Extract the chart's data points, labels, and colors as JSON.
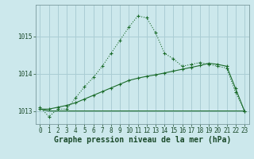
{
  "xlabel": "Graphe pression niveau de la mer (hPa)",
  "background_color": "#cce8ec",
  "grid_color": "#aacdd4",
  "line_color": "#1a6b2a",
  "hours": [
    0,
    1,
    2,
    3,
    4,
    5,
    6,
    7,
    8,
    9,
    10,
    11,
    12,
    13,
    14,
    15,
    16,
    17,
    18,
    19,
    20,
    21,
    22,
    23
  ],
  "line1": [
    1013.1,
    1012.85,
    1013.05,
    1013.05,
    1013.35,
    1013.65,
    1013.9,
    1014.2,
    1014.55,
    1014.9,
    1015.25,
    1015.55,
    1015.5,
    1015.1,
    1014.55,
    1014.4,
    1014.2,
    1014.25,
    1014.3,
    1014.25,
    1014.2,
    1014.15,
    1013.5,
    1013.0
  ],
  "line2": [
    1013.05,
    1013.05,
    1013.1,
    1013.15,
    1013.22,
    1013.32,
    1013.42,
    1013.52,
    1013.62,
    1013.72,
    1013.82,
    1013.88,
    1013.93,
    1013.97,
    1014.02,
    1014.07,
    1014.12,
    1014.17,
    1014.22,
    1014.28,
    1014.25,
    1014.2,
    1013.6,
    1013.0
  ],
  "line3": [
    1013.05,
    1013.0,
    1013.0,
    1013.0,
    1013.0,
    1013.0,
    1013.0,
    1013.0,
    1013.0,
    1013.0,
    1013.0,
    1013.0,
    1013.0,
    1013.0,
    1013.0,
    1013.0,
    1013.0,
    1013.0,
    1013.0,
    1013.0,
    1013.0,
    1013.0,
    1013.0,
    1013.0
  ],
  "ylim": [
    1012.65,
    1015.85
  ],
  "yticks": [
    1013,
    1014,
    1015
  ],
  "xticks": [
    0,
    1,
    2,
    3,
    4,
    5,
    6,
    7,
    8,
    9,
    10,
    11,
    12,
    13,
    14,
    15,
    16,
    17,
    18,
    19,
    20,
    21,
    22,
    23
  ],
  "tick_fontsize": 5.5,
  "xlabel_fontsize": 7.0
}
